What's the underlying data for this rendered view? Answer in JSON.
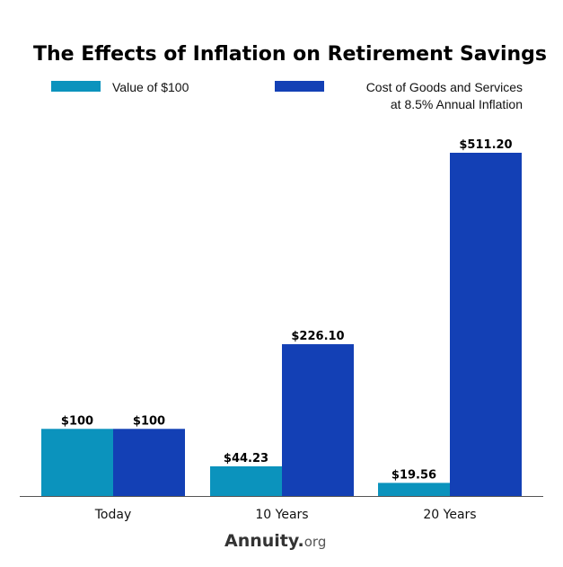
{
  "chart_data": {
    "type": "bar",
    "title": "The Effects of Inflation on Retirement Savings",
    "categories": [
      "Today",
      "10 Years",
      "20 Years"
    ],
    "series": [
      {
        "name": "Value of $100",
        "values": [
          100,
          44.23,
          19.56
        ],
        "labels": [
          "$100",
          "$44.23",
          "$19.56"
        ],
        "color": "#0b93bd"
      },
      {
        "name": "Cost of Goods and Services at 8.5% Annual Inflation",
        "name_lines": [
          "Cost of Goods and Services",
          "at 8.5% Annual Inflation"
        ],
        "values": [
          100,
          226.1,
          511.2
        ],
        "labels": [
          "$100",
          "$226.10",
          "$511.20"
        ],
        "color": "#1340b5"
      }
    ],
    "xlabel": "",
    "ylabel": "",
    "grid": false,
    "legend": "top"
  },
  "brand": {
    "name": "Annuity",
    "dot": ".",
    "tld": "org",
    "dot_color": "#7cc242"
  }
}
